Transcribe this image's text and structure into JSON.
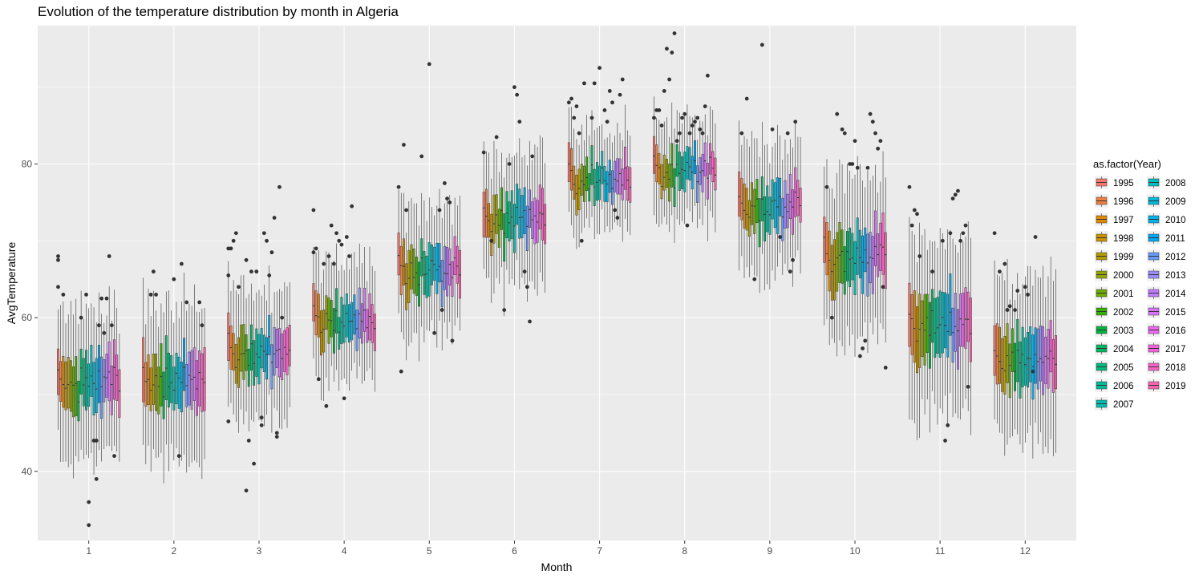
{
  "chart_data": {
    "type": "boxplot",
    "title": "Evolution of the temperature distribution by month in Algeria",
    "xlabel": "Month",
    "ylabel": "AvgTemperature",
    "categories": [
      "1",
      "2",
      "3",
      "4",
      "5",
      "6",
      "7",
      "8",
      "9",
      "10",
      "11",
      "12"
    ],
    "ylim": [
      31,
      98
    ],
    "yticks": [
      40,
      60,
      80
    ],
    "grid": true,
    "legend": {
      "title": "as.factor(Year)",
      "placement": "right",
      "entries": [
        "1995",
        "1996",
        "1997",
        "1998",
        "1999",
        "2000",
        "2001",
        "2002",
        "2003",
        "2004",
        "2005",
        "2006",
        "2007",
        "2008",
        "2009",
        "2010",
        "2011",
        "2012",
        "2013",
        "2014",
        "2015",
        "2016",
        "2017",
        "2018",
        "2019"
      ],
      "colors": [
        "#F8766D",
        "#EE8044",
        "#DF8A00",
        "#CB9400",
        "#B39C00",
        "#95A500",
        "#6FAB00",
        "#35B100",
        "#00B43E",
        "#00B763",
        "#00BA80",
        "#00BC99",
        "#00BDAF",
        "#00BDC4",
        "#00B9D7",
        "#00B2E9",
        "#00A8F5",
        "#659AFF",
        "#9A8DFF",
        "#BE7DFF",
        "#D974FA",
        "#EC69EF",
        "#F763DE",
        "#FC63C8",
        "#FF65AE"
      ]
    },
    "month_medians": [
      51.5,
      51.5,
      55.5,
      59.5,
      66.0,
      73.0,
      78.0,
      79.0,
      74.5,
      68.0,
      59.0,
      54.5
    ],
    "month_spreads": [
      5.0,
      5.5,
      4.5,
      4.0,
      4.5,
      4.5,
      3.5,
      3.5,
      4.5,
      5.5,
      6.0,
      5.5
    ],
    "year_offsets": [
      2.0,
      1.0,
      0.0,
      -1.5,
      -1.0,
      0.5,
      -0.5,
      0.5,
      -2.0,
      1.5,
      -1.0,
      0.0,
      -0.5,
      1.0,
      0.5,
      -0.5,
      1.5,
      -1.0,
      0.5,
      0.0,
      1.0,
      -0.5,
      1.5,
      0.5,
      -0.5
    ],
    "outliers": [
      [
        [
          1,
          64
        ],
        [
          1,
          67.5
        ],
        [
          1,
          68
        ],
        [
          3,
          63
        ],
        [
          10,
          60
        ],
        [
          12,
          63
        ],
        [
          13,
          36
        ],
        [
          13,
          33
        ],
        [
          15,
          44
        ],
        [
          16,
          39
        ],
        [
          16,
          44
        ],
        [
          17,
          59
        ],
        [
          18,
          62.5
        ],
        [
          19,
          58
        ],
        [
          20,
          62.5
        ],
        [
          21,
          68
        ],
        [
          22,
          59
        ],
        [
          23,
          42
        ]
      ],
      [
        [
          4,
          63
        ],
        [
          5,
          66
        ],
        [
          6,
          63
        ],
        [
          13,
          65
        ],
        [
          15,
          42
        ],
        [
          16,
          67
        ],
        [
          18,
          62
        ],
        [
          23,
          62
        ],
        [
          24,
          59
        ]
      ],
      [
        [
          1,
          46.5
        ],
        [
          1,
          65.5
        ],
        [
          1,
          69
        ],
        [
          2,
          69
        ],
        [
          3,
          70
        ],
        [
          4,
          71
        ],
        [
          5,
          64
        ],
        [
          8,
          67.5
        ],
        [
          8,
          37.5
        ],
        [
          9,
          44
        ],
        [
          10,
          66
        ],
        [
          11,
          41
        ],
        [
          12,
          66
        ],
        [
          14,
          47
        ],
        [
          14,
          46
        ],
        [
          15,
          71
        ],
        [
          16,
          70
        ],
        [
          17,
          65.5
        ],
        [
          18,
          68.5
        ],
        [
          19,
          73
        ],
        [
          20,
          45
        ],
        [
          20,
          44.5
        ],
        [
          21,
          77
        ],
        [
          22,
          60
        ]
      ],
      [
        [
          1,
          68.5
        ],
        [
          1,
          74
        ],
        [
          2,
          69
        ],
        [
          3,
          52
        ],
        [
          5,
          67
        ],
        [
          6,
          48.5
        ],
        [
          7,
          68
        ],
        [
          8,
          72
        ],
        [
          9,
          67
        ],
        [
          10,
          71
        ],
        [
          11,
          70
        ],
        [
          12,
          69.5
        ],
        [
          13,
          49.5
        ],
        [
          14,
          70.5
        ],
        [
          15,
          68
        ],
        [
          16,
          74.5
        ]
      ],
      [
        [
          1,
          77
        ],
        [
          2,
          53
        ],
        [
          3,
          82.5
        ],
        [
          4,
          74
        ],
        [
          10,
          81
        ],
        [
          13,
          93
        ],
        [
          15,
          58
        ],
        [
          17,
          74
        ],
        [
          18,
          61
        ],
        [
          19,
          77.5
        ],
        [
          20,
          75.5
        ],
        [
          21,
          75
        ],
        [
          22,
          57
        ]
      ],
      [
        [
          1,
          81.5
        ],
        [
          4,
          70
        ],
        [
          6,
          83.5
        ],
        [
          9,
          61
        ],
        [
          11,
          80
        ],
        [
          13,
          90
        ],
        [
          14,
          89
        ],
        [
          15,
          85.5
        ],
        [
          17,
          66
        ],
        [
          18,
          64
        ],
        [
          19,
          59.5
        ],
        [
          20,
          81
        ]
      ],
      [
        [
          1,
          88
        ],
        [
          2,
          88.5
        ],
        [
          3,
          86
        ],
        [
          4,
          87.5
        ],
        [
          5,
          84
        ],
        [
          6,
          70
        ],
        [
          7,
          90.5
        ],
        [
          10,
          86
        ],
        [
          11,
          90.5
        ],
        [
          13,
          92.5
        ],
        [
          15,
          87
        ],
        [
          16,
          85.5
        ],
        [
          17,
          89.5
        ],
        [
          18,
          88
        ],
        [
          19,
          74
        ],
        [
          20,
          73
        ],
        [
          21,
          89
        ],
        [
          22,
          91
        ]
      ],
      [
        [
          1,
          86
        ],
        [
          2,
          87
        ],
        [
          3,
          87
        ],
        [
          4,
          85
        ],
        [
          5,
          89.5
        ],
        [
          6,
          95
        ],
        [
          7,
          91
        ],
        [
          8,
          94.5
        ],
        [
          9,
          97
        ],
        [
          10,
          83
        ],
        [
          11,
          84
        ],
        [
          12,
          86
        ],
        [
          13,
          86.5
        ],
        [
          14,
          72
        ],
        [
          15,
          84
        ],
        [
          16,
          85
        ],
        [
          17,
          85.5
        ],
        [
          18,
          86
        ],
        [
          19,
          84.5
        ],
        [
          20,
          84
        ],
        [
          21,
          87.5
        ],
        [
          22,
          91.5
        ]
      ],
      [
        [
          2,
          84
        ],
        [
          4,
          88.5
        ],
        [
          7,
          65
        ],
        [
          10,
          95.5
        ],
        [
          14,
          84.5
        ],
        [
          17,
          70.5
        ],
        [
          20,
          84
        ],
        [
          21,
          66
        ],
        [
          22,
          67.5
        ],
        [
          23,
          85.5
        ]
      ],
      [
        [
          2,
          77
        ],
        [
          4,
          60
        ],
        [
          6,
          86.5
        ],
        [
          8,
          84.5
        ],
        [
          9,
          84
        ],
        [
          11,
          80
        ],
        [
          12,
          80
        ],
        [
          13,
          83
        ],
        [
          14,
          79.5
        ],
        [
          15,
          55
        ],
        [
          16,
          56
        ],
        [
          17,
          57
        ],
        [
          18,
          79.5
        ],
        [
          19,
          86.5
        ],
        [
          20,
          85.5
        ],
        [
          21,
          84
        ],
        [
          22,
          82
        ],
        [
          23,
          83
        ],
        [
          24,
          64
        ],
        [
          25,
          53.5
        ]
      ],
      [
        [
          1,
          77
        ],
        [
          2,
          72
        ],
        [
          3,
          74
        ],
        [
          4,
          73.5
        ],
        [
          5,
          68
        ],
        [
          10,
          66
        ],
        [
          14,
          70
        ],
        [
          15,
          44
        ],
        [
          16,
          46
        ],
        [
          17,
          71
        ],
        [
          18,
          75.5
        ],
        [
          19,
          76
        ],
        [
          20,
          76.5
        ],
        [
          21,
          70
        ],
        [
          22,
          71
        ],
        [
          23,
          72
        ],
        [
          24,
          51
        ]
      ],
      [
        [
          1,
          71
        ],
        [
          3,
          66
        ],
        [
          5,
          67
        ],
        [
          6,
          61
        ],
        [
          7,
          61.5
        ],
        [
          9,
          61
        ],
        [
          10,
          63.5
        ],
        [
          13,
          64
        ],
        [
          14,
          63
        ],
        [
          16,
          53
        ],
        [
          17,
          70.5
        ]
      ]
    ]
  }
}
